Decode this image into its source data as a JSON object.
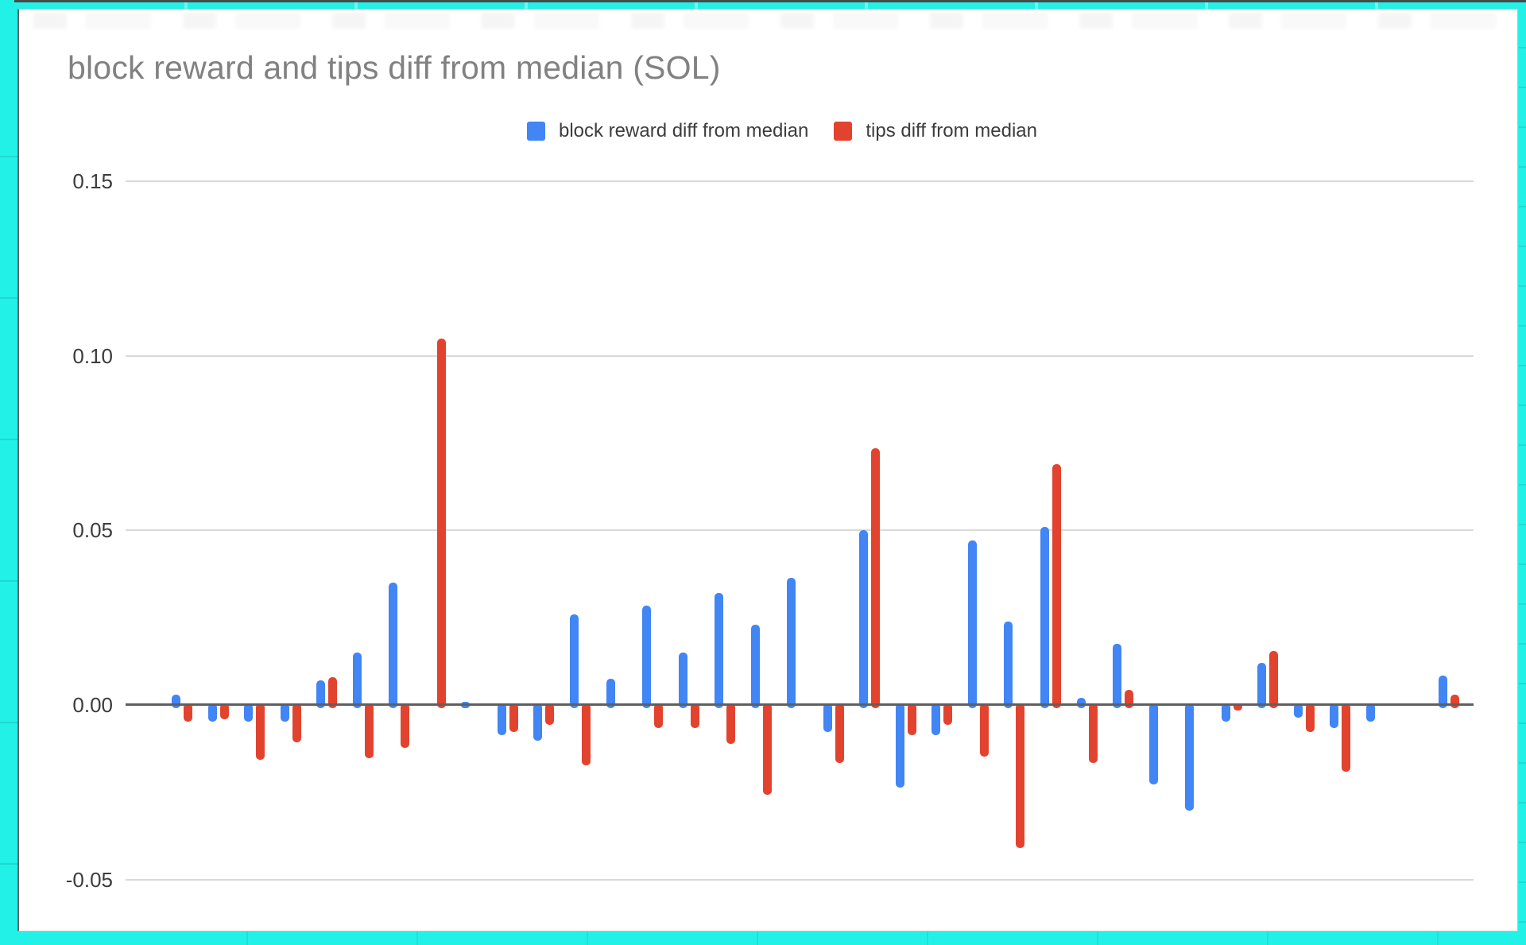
{
  "theme": {
    "page_background": "#22f1e8",
    "card_background": "#ffffff",
    "gridline_color": "#d9d9d9",
    "baseline_color": "#5f5f5f",
    "title_color": "#818181",
    "blue": "#4285f4",
    "red": "#e2432f"
  },
  "chart": {
    "title": "block reward and tips diff from median (SOL)"
  },
  "chart_data": {
    "type": "bar",
    "title": "block reward and tips diff from median (SOL)",
    "categories": [
      1,
      2,
      3,
      4,
      5,
      6,
      7,
      8,
      9,
      10,
      11,
      12,
      13,
      14,
      15,
      16,
      17,
      18,
      19,
      20,
      21,
      22,
      23,
      24,
      25,
      26,
      27,
      28,
      29,
      30,
      31,
      32,
      33,
      34,
      35,
      36
    ],
    "x_axis_labels_visible": false,
    "series": [
      {
        "name": "block reward diff from median",
        "color": "#4285f4",
        "values": [
          0.003,
          -0.004,
          -0.004,
          -0.004,
          0.007,
          0.015,
          0.035,
          0,
          0.001,
          -0.008,
          -0.0095,
          0.026,
          0.0075,
          0.0285,
          0.015,
          0.032,
          0.023,
          0.0365,
          -0.007,
          0.05,
          -0.023,
          -0.008,
          0.047,
          0.024,
          0.051,
          0.002,
          0.0175,
          -0.022,
          -0.0295,
          -0.004,
          0.012,
          -0.003,
          -0.006,
          -0.004,
          0,
          0.0085
        ]
      },
      {
        "name": "tips diff from median",
        "color": "#e2432f",
        "values": [
          -0.004,
          -0.0035,
          -0.015,
          -0.01,
          0.008,
          -0.0145,
          -0.0115,
          0.105,
          0,
          -0.007,
          -0.005,
          -0.0165,
          0,
          -0.006,
          -0.006,
          -0.0105,
          -0.025,
          0,
          -0.016,
          0.0735,
          -0.008,
          -0.005,
          -0.014,
          -0.0402,
          0.069,
          -0.016,
          0.0044,
          0,
          0,
          -0.001,
          0.0155,
          -0.007,
          -0.0185,
          0,
          0,
          0.003
        ]
      }
    ],
    "y_ticks": [
      0.15,
      0.1,
      0.05,
      0,
      -0.05
    ],
    "y_tick_labels": [
      "0.15",
      "0.10",
      "0.05",
      "0.00",
      "-0.05"
    ],
    "ylim": [
      -0.065,
      0.165
    ],
    "grid": true,
    "legend_position": "top"
  }
}
